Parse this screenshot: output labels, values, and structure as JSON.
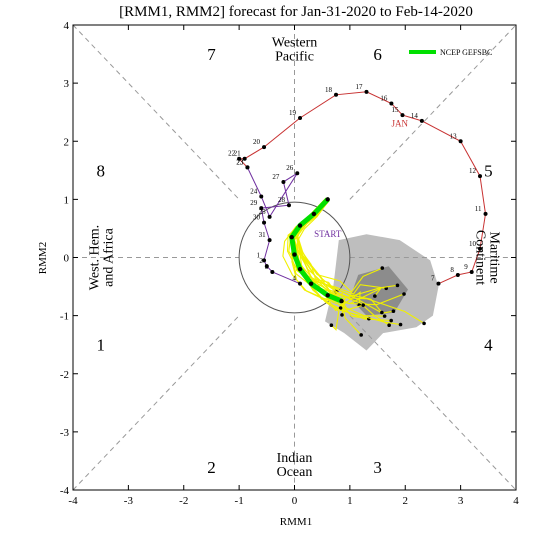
{
  "chart_data": {
    "type": "line",
    "title": "[RMM1, RMM2] forecast for Jan-31-2020 to Feb-14-2020",
    "xlabel": "RMM1",
    "ylabel": "RMM2",
    "xlim": [
      -4,
      4
    ],
    "ylim": [
      -4,
      4
    ],
    "x_ticks": [
      "-4",
      "-3",
      "-2",
      "-1",
      "0",
      "1",
      "2",
      "3",
      "4"
    ],
    "y_ticks": [
      "4",
      "3",
      "2",
      "1",
      "0",
      "-1",
      "-2",
      "-3",
      "-4"
    ],
    "grid": false,
    "legend_position": "top-right",
    "phases": [
      {
        "label": "1",
        "x": -3.5,
        "y": -1.5
      },
      {
        "label": "2",
        "x": -1.5,
        "y": -3.6
      },
      {
        "label": "3",
        "x": 1.5,
        "y": -3.6
      },
      {
        "label": "4",
        "x": 3.5,
        "y": -1.5
      },
      {
        "label": "5",
        "x": 3.5,
        "y": 1.5
      },
      {
        "label": "6",
        "x": 1.5,
        "y": 3.5
      },
      {
        "label": "7",
        "x": -1.5,
        "y": 3.5
      },
      {
        "label": "8",
        "x": -3.5,
        "y": 1.5
      }
    ],
    "regions": [
      {
        "name": "western-pacific",
        "lines": [
          "Western",
          "Pacific"
        ],
        "x": 0,
        "y": 3.6
      },
      {
        "name": "indian-ocean",
        "lines": [
          "Indian",
          "Ocean"
        ],
        "x": 0,
        "y": -3.55
      },
      {
        "name": "west-hem-africa",
        "lines": [
          "West. Hem.",
          "and Africa"
        ],
        "x": -3.5,
        "y": 0,
        "rotate": -90
      },
      {
        "name": "maritime-continent",
        "lines": [
          "Maritime",
          "Continent"
        ],
        "x": 3.5,
        "y": 0,
        "rotate": 90
      }
    ],
    "annotations": {
      "month": {
        "text": "JAN",
        "x": 1.9,
        "y": 2.25
      },
      "start": {
        "text": "START",
        "x": 0.6,
        "y": 0.35
      }
    },
    "series": [
      {
        "name": "January observed (red)",
        "color": "#c83232",
        "points": [
          {
            "label": "7",
            "x": 2.6,
            "y": -0.45
          },
          {
            "label": "8",
            "x": 2.95,
            "y": -0.3
          },
          {
            "label": "9",
            "x": 3.2,
            "y": -0.25
          },
          {
            "label": "10",
            "x": 3.35,
            "y": 0.15
          },
          {
            "label": "11",
            "x": 3.45,
            "y": 0.75
          },
          {
            "label": "12",
            "x": 3.35,
            "y": 1.4
          },
          {
            "label": "13",
            "x": 3.0,
            "y": 2.0
          },
          {
            "label": "14",
            "x": 2.3,
            "y": 2.35
          },
          {
            "label": "15",
            "x": 1.95,
            "y": 2.45
          },
          {
            "label": "16",
            "x": 1.75,
            "y": 2.65
          },
          {
            "label": "17",
            "x": 1.3,
            "y": 2.85
          },
          {
            "label": "18",
            "x": 0.75,
            "y": 2.8
          },
          {
            "label": "19",
            "x": 0.1,
            "y": 2.4
          },
          {
            "label": "20",
            "x": -0.55,
            "y": 1.9
          },
          {
            "label": "21",
            "x": -0.9,
            "y": 1.7
          },
          {
            "label": "22",
            "x": -1.0,
            "y": 1.7
          },
          {
            "label": "23",
            "x": -0.85,
            "y": 1.55
          }
        ]
      },
      {
        "name": "January observed (purple)",
        "color": "#7030a0",
        "points": [
          {
            "label": "23",
            "x": -0.85,
            "y": 1.55
          },
          {
            "label": "24",
            "x": -0.6,
            "y": 1.05
          },
          {
            "label": "25",
            "x": -0.45,
            "y": 0.7
          },
          {
            "label": "26",
            "x": 0.05,
            "y": 1.45
          },
          {
            "label": "27",
            "x": -0.2,
            "y": 1.3
          },
          {
            "label": "28",
            "x": -0.1,
            "y": 0.9
          },
          {
            "label": "29",
            "x": -0.6,
            "y": 0.85
          },
          {
            "label": "30",
            "x": -0.55,
            "y": 0.6
          },
          {
            "label": "31",
            "x": -0.45,
            "y": 0.3
          },
          {
            "label": "1",
            "x": -0.55,
            "y": -0.05
          },
          {
            "label": "2",
            "x": -0.5,
            "y": -0.15
          },
          {
            "label": "3",
            "x": -0.4,
            "y": -0.25
          },
          {
            "label": "4",
            "x": 0.1,
            "y": -0.45
          }
        ]
      },
      {
        "name": "NCEP GEFSBC",
        "color": "#00e000",
        "points": [
          {
            "x": 0.6,
            "y": 1.0
          },
          {
            "x": 0.35,
            "y": 0.75
          },
          {
            "x": 0.1,
            "y": 0.55
          },
          {
            "x": -0.05,
            "y": 0.35
          },
          {
            "x": 0.0,
            "y": 0.05
          },
          {
            "x": 0.1,
            "y": -0.2
          },
          {
            "x": 0.3,
            "y": -0.45
          },
          {
            "x": 0.6,
            "y": -0.65
          },
          {
            "x": 0.85,
            "y": -0.75
          }
        ]
      }
    ],
    "ensemble": {
      "color": "#f0f000",
      "spread_outer_color": "#bebebe",
      "spread_inner_color": "#8c8c8c"
    },
    "legend": [
      {
        "label": "NCEP GEFSBC",
        "color": "#00e000"
      }
    ]
  }
}
